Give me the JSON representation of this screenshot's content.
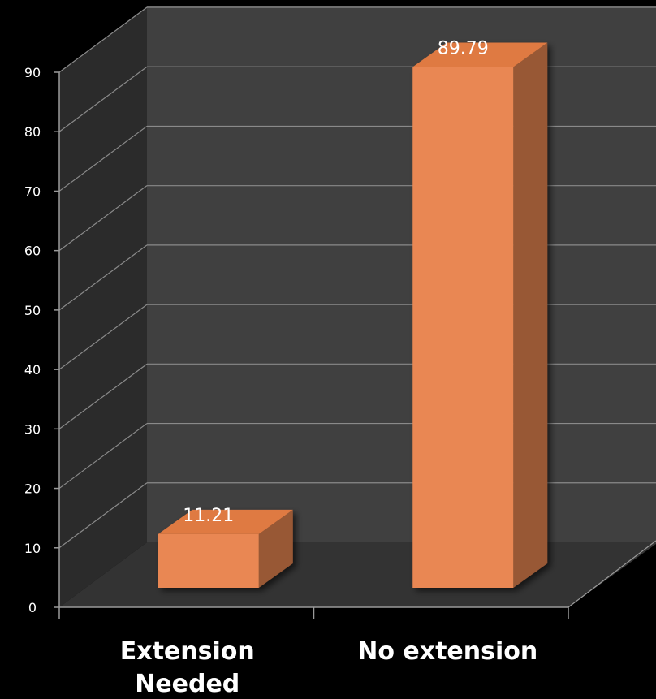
{
  "chart_data": {
    "type": "bar",
    "style": "3d-column",
    "categories": [
      "Extension Needed",
      "No extension"
    ],
    "category_lines": [
      [
        "Extension",
        "Needed"
      ],
      [
        "No extension"
      ]
    ],
    "values": [
      11.21,
      89.79
    ],
    "data_labels": [
      "11.21",
      "89.79"
    ],
    "title": "",
    "xlabel": "",
    "ylabel": "",
    "ylim": [
      0,
      90
    ],
    "yticks": [
      0,
      10,
      20,
      30,
      40,
      50,
      60,
      70,
      80,
      90
    ],
    "grid": true,
    "legend": "none",
    "colors": {
      "bar_front": "#e98753",
      "bar_top": "#df7a43",
      "bar_side": "#985835",
      "back_wall": "#404040",
      "side_wall": "#2b2b2b",
      "floor": "#333333",
      "grid": "#8a8a8a",
      "axis": "#9a9a9a",
      "text": "#ffffff",
      "background": "#000000"
    }
  }
}
